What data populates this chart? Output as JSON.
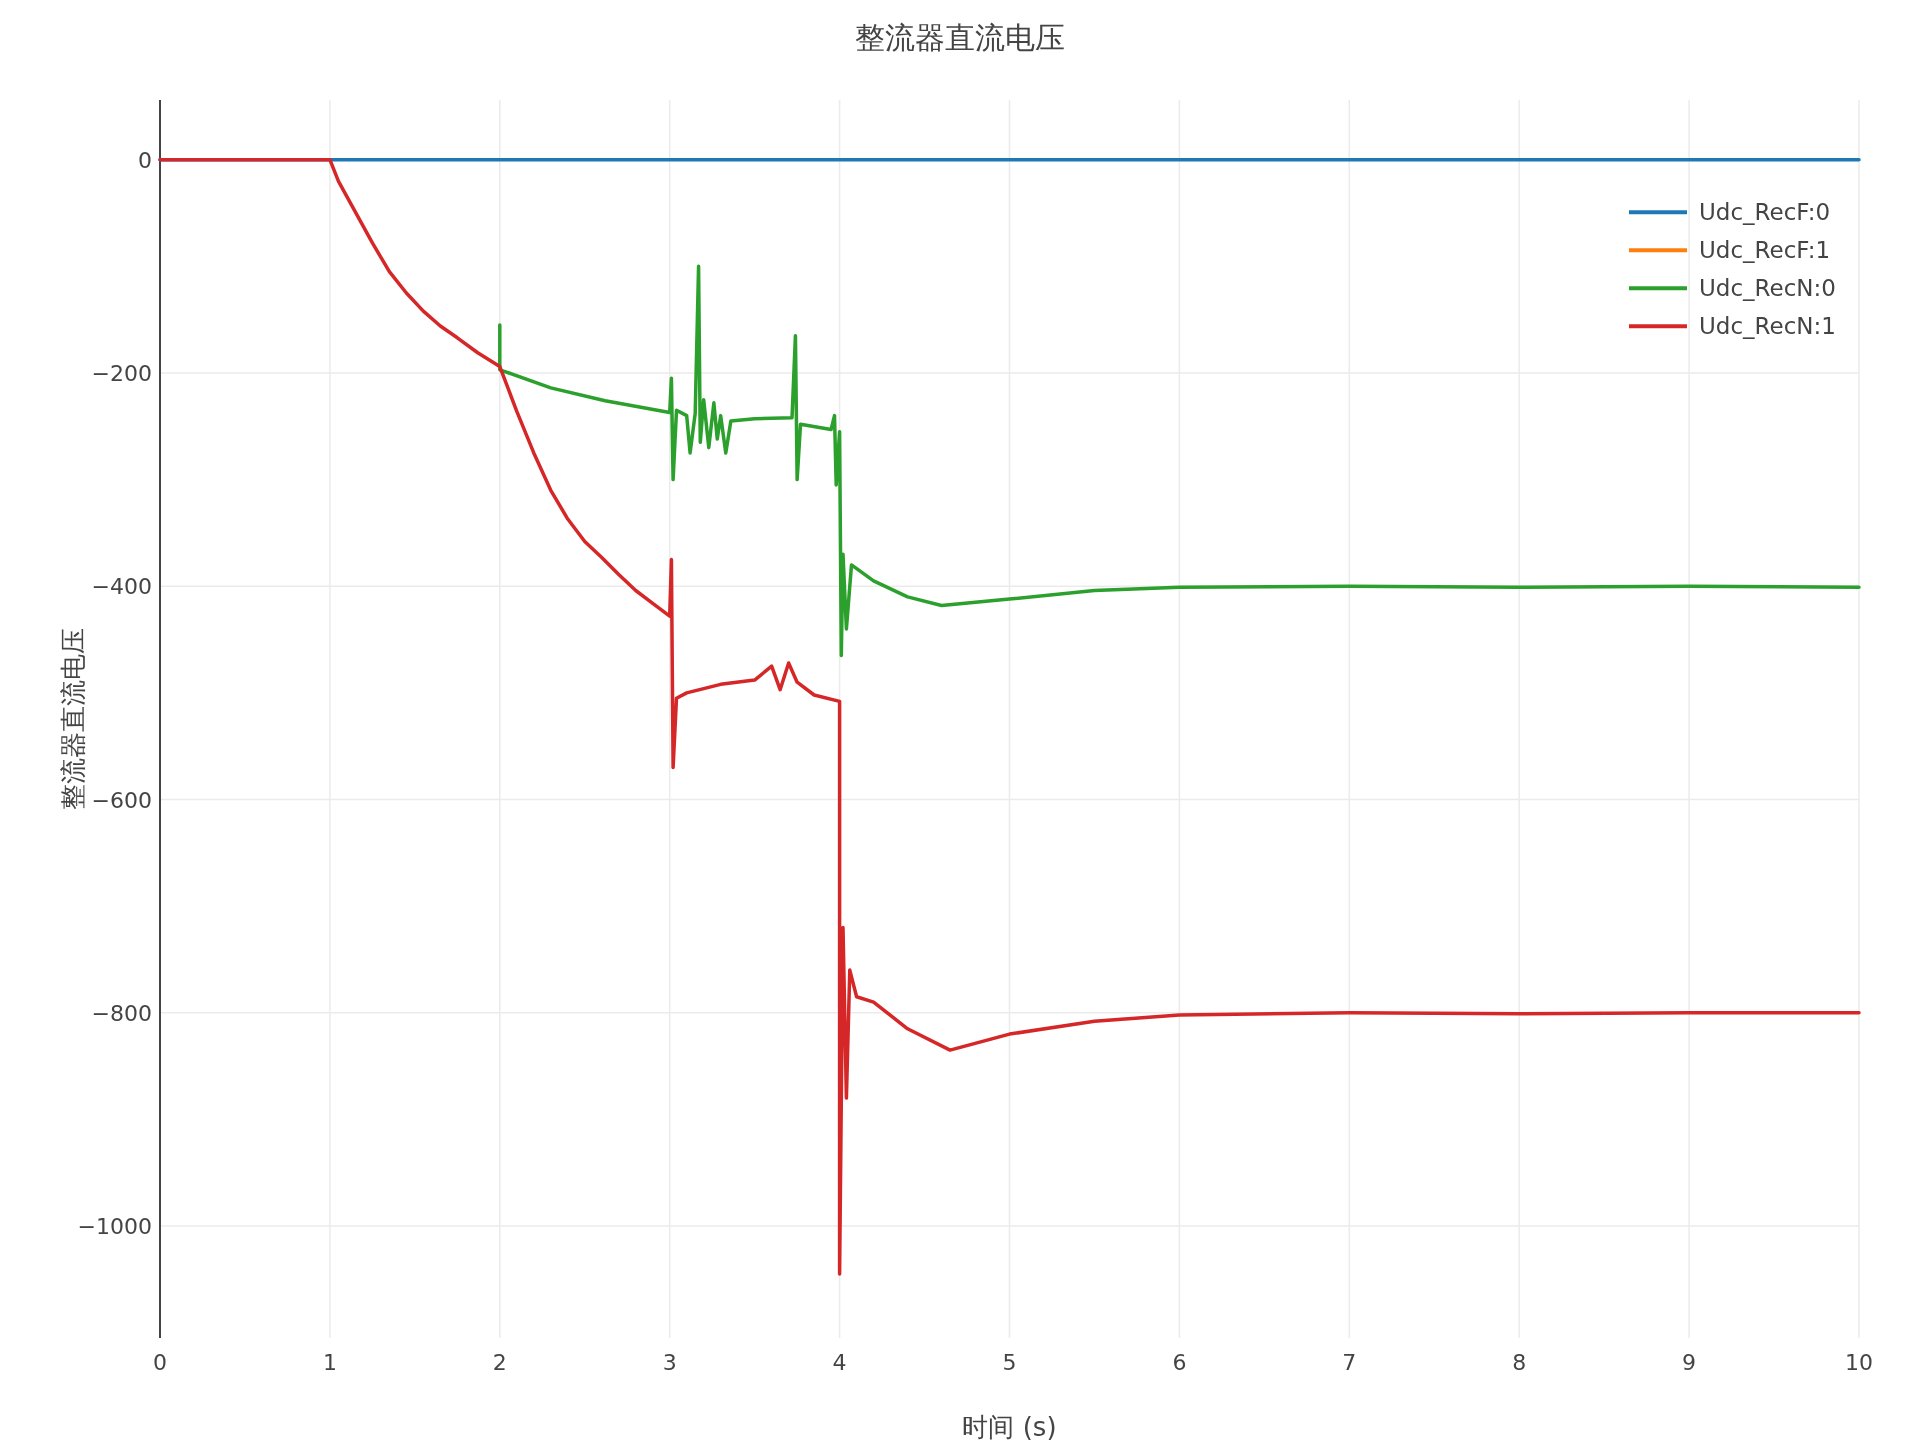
{
  "chart_data": {
    "type": "line",
    "title": "整流器直流电压",
    "xlabel": "时间 (s)",
    "ylabel": "整流器直流电压",
    "xlim": [
      0,
      10
    ],
    "xticks": [
      0,
      1,
      2,
      3,
      4,
      5,
      6,
      7,
      8,
      9,
      10
    ],
    "ylim": [
      -1105,
      56
    ],
    "yticks": [
      0,
      {
        "value": -200,
        "label": "−200"
      },
      {
        "value": -400,
        "label": "−400"
      },
      {
        "value": -600,
        "label": "−600"
      },
      {
        "value": -800,
        "label": "−800"
      },
      {
        "value": -1000,
        "label": "−1000"
      }
    ],
    "grid": true,
    "legend": "top right",
    "line_style": "solid",
    "marker": "none",
    "series": [
      {
        "name": "Udc_RecF:0",
        "color": "#1f77b4",
        "x": [
          0,
          10
        ],
        "values": [
          0,
          0
        ]
      },
      {
        "name": "Udc_RecF:1",
        "color": "#ff7f0e"
      },
      {
        "name": "Udc_RecN:0",
        "color": "#2ca02c",
        "x": [
          2,
          2,
          2,
          2.3,
          2.62,
          3.0,
          3.01,
          3.02,
          3.04,
          3.1,
          3.12,
          3.15,
          3.17,
          3.18,
          3.2,
          3.23,
          3.26,
          3.28,
          3.3,
          3.33,
          3.36,
          3.5,
          3.72,
          3.74,
          3.75,
          3.77,
          3.95,
          3.97,
          3.98,
          4.0,
          4.01,
          4.02,
          4.04,
          4.07,
          4.2,
          4.4,
          4.6,
          5,
          5.5,
          6,
          7,
          8,
          9,
          10
        ],
        "values": [
          -196,
          -155,
          -197,
          -214,
          -226,
          -237,
          -205,
          -300,
          -235,
          -240,
          -275,
          -238,
          -100,
          -265,
          -225,
          -270,
          -228,
          -262,
          -240,
          -275,
          -245,
          -243,
          -242,
          -165,
          -300,
          -248,
          -253,
          -240,
          -305,
          -255,
          -465,
          -370,
          -440,
          -380,
          -395,
          -410,
          -418,
          -412,
          -404,
          -401,
          -400,
          -401,
          -400,
          -401
        ]
      },
      {
        "name": "Udc_RecN:1",
        "color": "#d62728",
        "x": [
          0,
          1,
          1.05,
          1.16,
          1.25,
          1.35,
          1.45,
          1.55,
          1.65,
          1.75,
          1.87,
          2,
          2.05,
          2.1,
          2.2,
          2.3,
          2.4,
          2.5,
          2.6,
          2.7,
          2.8,
          2.9,
          3.0,
          3.01,
          3.02,
          3.04,
          3.1,
          3.3,
          3.5,
          3.6,
          3.65,
          3.7,
          3.75,
          3.85,
          4.0,
          4.0,
          4.02,
          4.04,
          4.06,
          4.1,
          4.2,
          4.4,
          4.65,
          5,
          5.5,
          6,
          7,
          8,
          9,
          10
        ],
        "values": [
          0,
          0,
          -20,
          -52,
          -78,
          -105,
          -125,
          -142,
          -156,
          -167,
          -181,
          -194,
          -215,
          -236,
          -275,
          -310,
          -337,
          -358,
          -373,
          -389,
          -404,
          -416,
          -428,
          -375,
          -570,
          -505,
          -500,
          -492,
          -488,
          -475,
          -497,
          -472,
          -490,
          -502,
          -508,
          -1045,
          -720,
          -880,
          -760,
          -785,
          -790,
          -815,
          -835,
          -820,
          -808,
          -802,
          -800,
          -801,
          -800,
          -800
        ]
      }
    ]
  }
}
